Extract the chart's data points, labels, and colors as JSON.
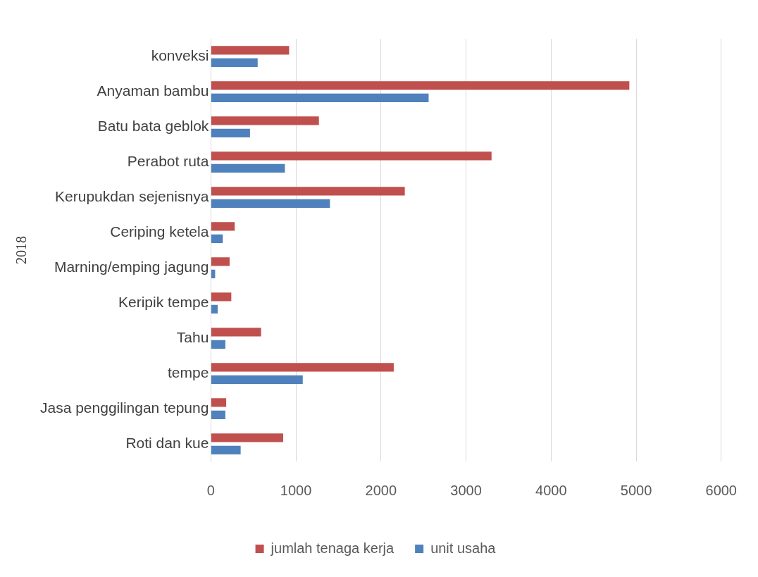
{
  "chart_data": {
    "type": "bar",
    "orientation": "horizontal",
    "ylabel": "2018",
    "categories": [
      "konveksi",
      "Anyaman bambu",
      "Batu bata geblok",
      "Perabot ruta",
      "Kerupukdan sejenisnya",
      "Ceriping ketela",
      "Marning/emping jagung",
      "Keripik tempe",
      "Tahu",
      "tempe",
      "Jasa penggilingan tepung",
      "Roti dan kue"
    ],
    "series": [
      {
        "name": "jumlah tenaga kerja",
        "color": "#c0504d",
        "values": [
          920,
          4920,
          1270,
          3300,
          2280,
          280,
          220,
          240,
          590,
          2150,
          180,
          850
        ]
      },
      {
        "name": "unit usaha",
        "color": "#4f81bd",
        "values": [
          550,
          2560,
          460,
          870,
          1400,
          140,
          50,
          80,
          170,
          1080,
          170,
          350
        ]
      }
    ],
    "xlim": [
      0,
      6000
    ],
    "xticks": [
      0,
      1000,
      2000,
      3000,
      4000,
      5000,
      6000
    ],
    "grid": "x",
    "legend": "bottom"
  }
}
